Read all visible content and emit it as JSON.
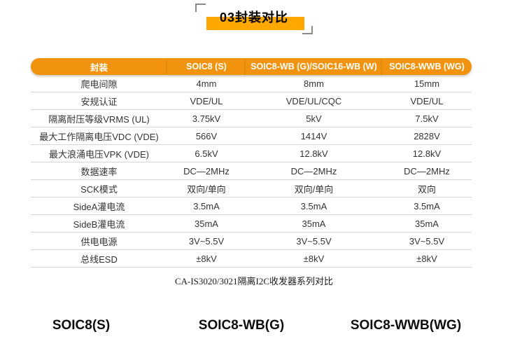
{
  "header": {
    "title": "03封装对比"
  },
  "colors": {
    "accent": "#F1930F",
    "title_highlight": "#FFA802",
    "row_line": "#D6D6D6",
    "header_text": "#FFFFFF"
  },
  "table": {
    "columns": [
      "封装",
      "SOIC8 (S)",
      "SOIC8-WB (G)/SOIC16-WB (W)",
      "SOIC8-WWB (WG)"
    ],
    "rows": [
      [
        "爬电间隙",
        "4mm",
        "8mm",
        "15mm"
      ],
      [
        "安规认证",
        "VDE/UL",
        "VDE/UL/CQC",
        "VDE/UL"
      ],
      [
        "隔离耐压等级VRMS (UL)",
        "3.75kV",
        "5kV",
        "7.5kV"
      ],
      [
        "最大工作隔离电压VDC (VDE)",
        "566V",
        "1414V",
        "2828V"
      ],
      [
        "最大浪涌电压VPK (VDE)",
        "6.5kV",
        "12.8kV",
        "12.8kV"
      ],
      [
        "数据速率",
        "DC—2MHz",
        "DC—2MHz",
        "DC—2MHz"
      ],
      [
        "SCK模式",
        "双向/单向",
        "双向/单向",
        "双向"
      ],
      [
        "SideA灌电流",
        "3.5mA",
        "3.5mA",
        "3.5mA"
      ],
      [
        "SideB灌电流",
        "35mA",
        "35mA",
        "35mA"
      ],
      [
        "供电电源",
        "3V~5.5V",
        "3V~5.5V",
        "3V~5.5V"
      ],
      [
        "总线ESD",
        "±8kV",
        "±8kV",
        "±8kV"
      ]
    ],
    "caption": "CA-IS3020/3021隔离I2C收发器系列对比"
  },
  "package_labels": [
    "SOIC8(S)",
    "SOIC8-WB(G)",
    "SOIC8-WWB(WG)"
  ]
}
